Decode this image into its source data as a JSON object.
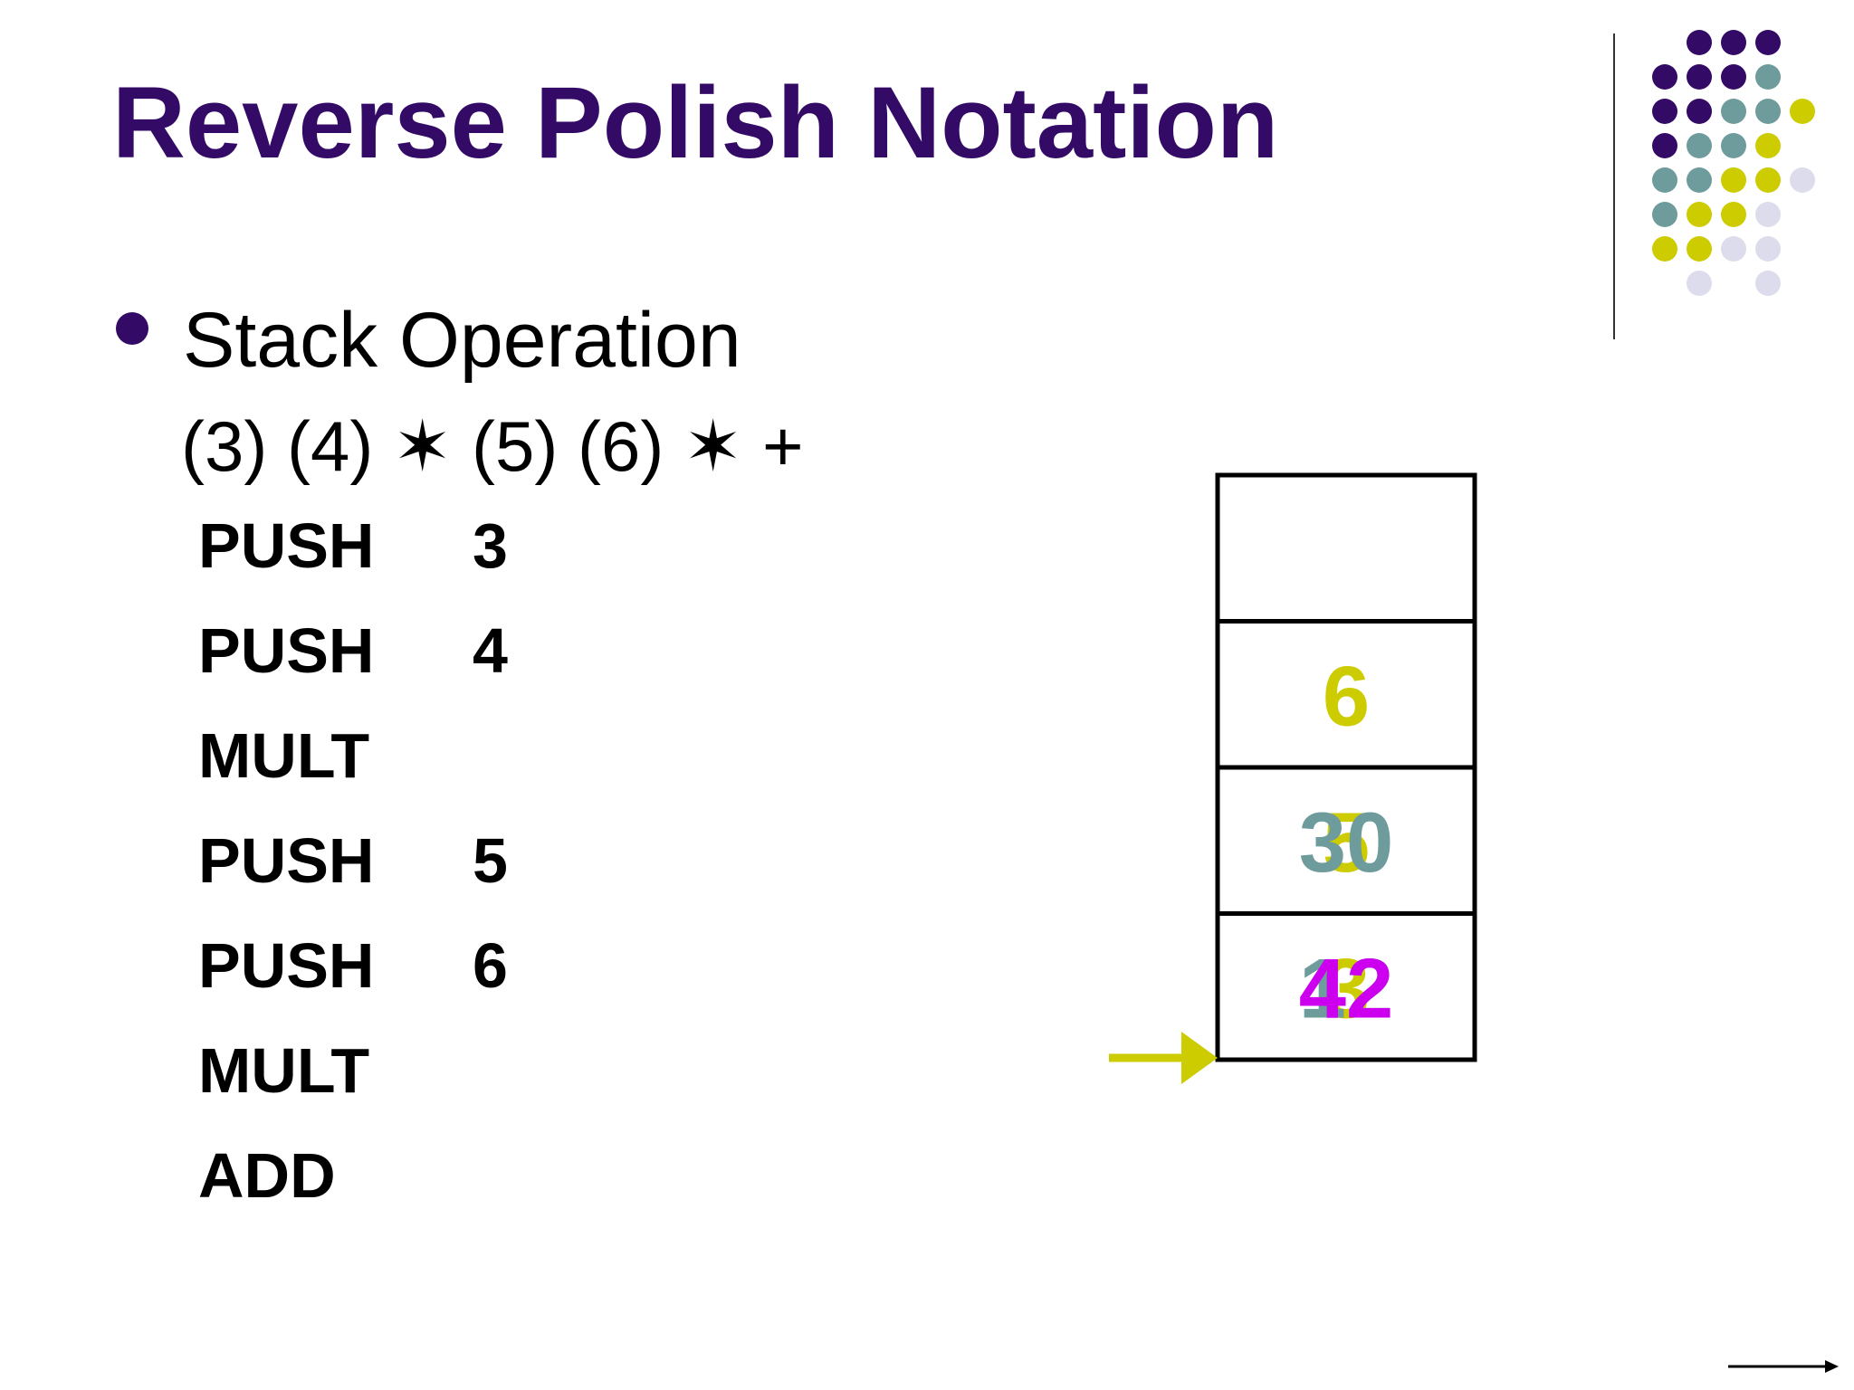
{
  "header": {
    "title": "Reverse Polish Notation"
  },
  "bullet": {
    "text": "Stack Operation",
    "expression": "(3) (4) ✶ (5) (6) ✶ +"
  },
  "instructions": [
    {
      "op": "PUSH",
      "arg": "3"
    },
    {
      "op": "PUSH",
      "arg": "4"
    },
    {
      "op": "MULT"
    },
    {
      "op": "PUSH",
      "arg": "5"
    },
    {
      "op": "PUSH",
      "arg": "6"
    },
    {
      "op": "MULT"
    },
    {
      "op": "ADD"
    }
  ],
  "stack": {
    "cells": [
      [],
      [
        {
          "text": "6",
          "color": "#cccc00"
        }
      ],
      [
        {
          "text": "5",
          "color": "#cccc00"
        },
        {
          "text": "30",
          "color": "#6e9c9c"
        }
      ],
      [
        {
          "text": "3",
          "color": "#cccc00"
        },
        {
          "text": "12",
          "color": "#6e9c9c"
        },
        {
          "text": "42",
          "color": "#cc00ee"
        }
      ]
    ]
  }
}
